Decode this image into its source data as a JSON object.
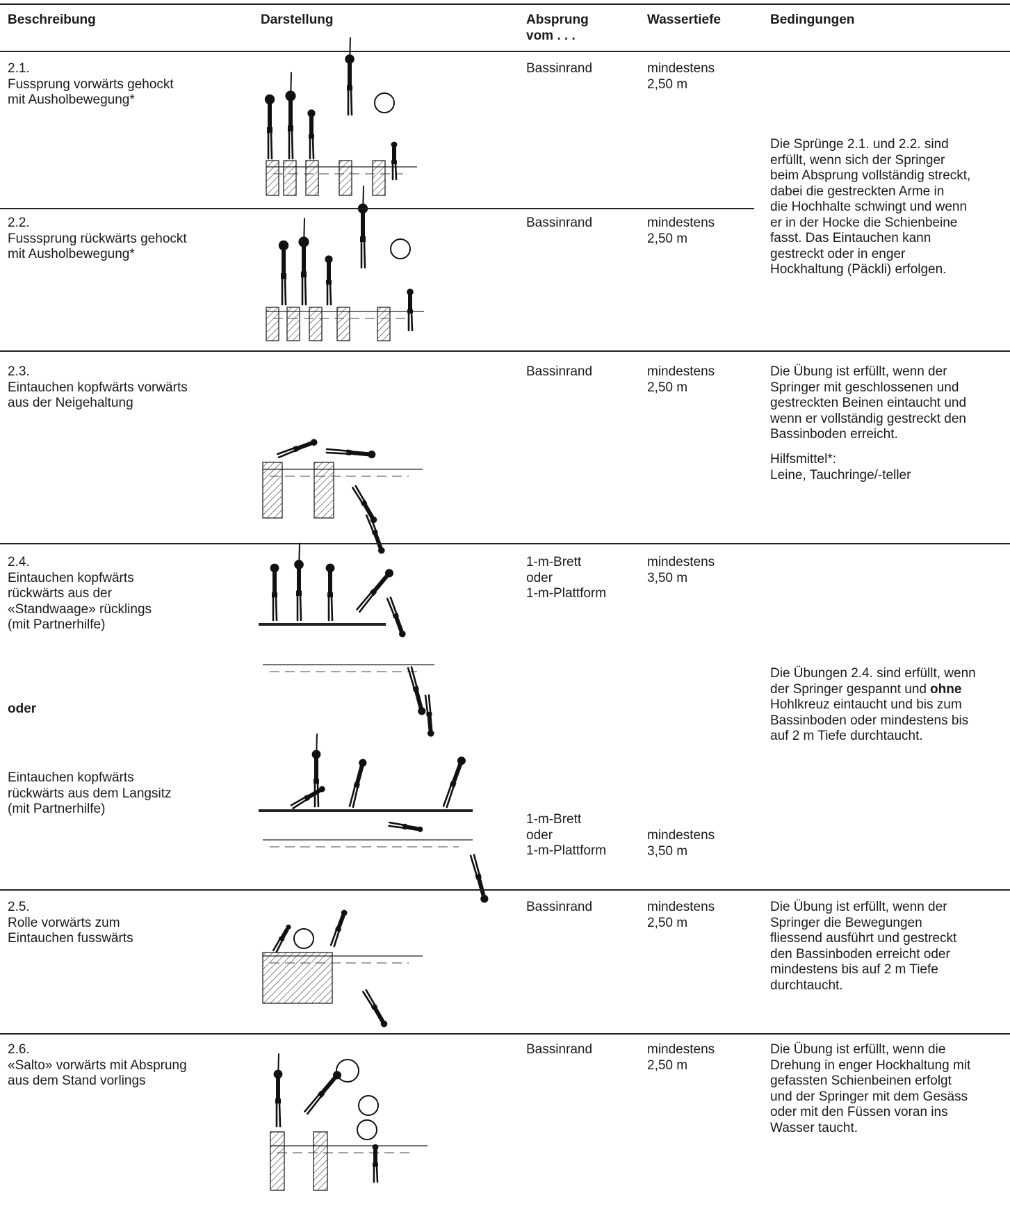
{
  "header": {
    "beschreibung": "Beschreibung",
    "darstellung": "Darstellung",
    "absprung": [
      "Absprung",
      "vom . . ."
    ],
    "wassertiefe": "Wassertiefe",
    "bedingungen": "Bedingungen"
  },
  "rows": [
    {
      "number": "2.1.",
      "description": [
        "Fussprung vorwärts gehockt",
        "mit Ausholbewegung*"
      ],
      "absprung": [
        "Bassinrand"
      ],
      "wassertiefe": [
        "mindestens",
        "2,50 m"
      ]
    },
    {
      "number": "2.2.",
      "description": [
        "Fusssprung rückwärts gehockt",
        "mit Ausholbewegung*"
      ],
      "absprung": [
        "Bassinrand"
      ],
      "wassertiefe": [
        "mindestens",
        "2,50 m"
      ]
    },
    {
      "number": "2.3.",
      "description": [
        "Eintauchen kopfwärts vorwärts",
        "aus der Neigehaltung"
      ],
      "absprung": [
        "Bassinrand"
      ],
      "wassertiefe": [
        "mindestens",
        "2,50 m"
      ],
      "bedingungen": [
        "Die Übung ist erfüllt, wenn der",
        "Springer mit geschlossenen und",
        "gestreckten Beinen eintaucht und",
        "wenn er vollständig gestreckt den",
        "Bassinboden erreicht."
      ],
      "hilfsmittel": [
        "Hilfsmittel*:",
        "Leine, Tauchringe/-teller"
      ]
    },
    {
      "number": "2.4.",
      "description": [
        "Eintauchen kopfwärts",
        "rückwärts aus der",
        "«Standwaage» rücklings",
        "(mit Partnerhilfe)"
      ],
      "absprung": [
        "1-m-Brett",
        "oder",
        "1-m-Plattform"
      ],
      "wassertiefe": [
        "mindestens",
        "3,50 m"
      ],
      "oder": "oder",
      "alt_description": [
        "Eintauchen kopfwärts",
        "rückwärts aus dem Langsitz",
        "(mit Partnerhilfe)"
      ],
      "alt_absprung": [
        "1-m-Brett",
        "oder",
        "1-m-Plattform"
      ],
      "alt_wassertiefe": [
        "mindestens",
        "3,50 m"
      ],
      "bedingungen": {
        "first": "Die Übungen 2.4. sind erfüllt, wenn",
        "bold_line": "der Springer gespannt und",
        "bold": "ohne",
        "rest": [
          "Hohlkreuz eintaucht und bis zum",
          "Bassinboden oder mindestens bis",
          "auf 2 m Tiefe durchtaucht."
        ]
      }
    },
    {
      "number": "2.5.",
      "description": [
        "Rolle vorwärts zum",
        "Eintauchen fusswärts"
      ],
      "absprung": [
        "Bassinrand"
      ],
      "wassertiefe": [
        "mindestens",
        "2,50 m"
      ],
      "bedingungen": [
        "Die Übung ist erfüllt, wenn der",
        "Springer die Bewegungen",
        "fliessend ausführt und gestreckt",
        "den Bassinboden erreicht oder",
        "mindestens bis auf 2 m Tiefe",
        "durchtaucht."
      ]
    },
    {
      "number": "2.6.",
      "description": [
        "«Salto» vorwärts mit Absprung",
        "aus dem Stand vorlings"
      ],
      "absprung": [
        "Bassinrand"
      ],
      "wassertiefe": [
        "mindestens",
        "2,50 m"
      ],
      "bedingungen": [
        "Die Übung ist erfüllt, wenn die",
        "Drehung in enger Hockhaltung mit",
        "gefassten Schienbeinen erfolgt",
        "und der Springer mit dem Gesäss",
        "oder mit den Füssen voran ins",
        "Wasser taucht."
      ]
    }
  ],
  "shared_bedingungen": [
    "Die Sprünge 2.1. und 2.2. sind",
    "erfüllt, wenn sich der Springer",
    "beim Absprung vollständig streckt,",
    "dabei die gestreckten Arme in",
    "die Hochhalte schwingt und wenn",
    "er in der Hocke die Schienbeine",
    "fasst. Das Eintauchen kann",
    "gestreckt oder in enger",
    "Hockhaltung (Päckli) erfolgen."
  ]
}
